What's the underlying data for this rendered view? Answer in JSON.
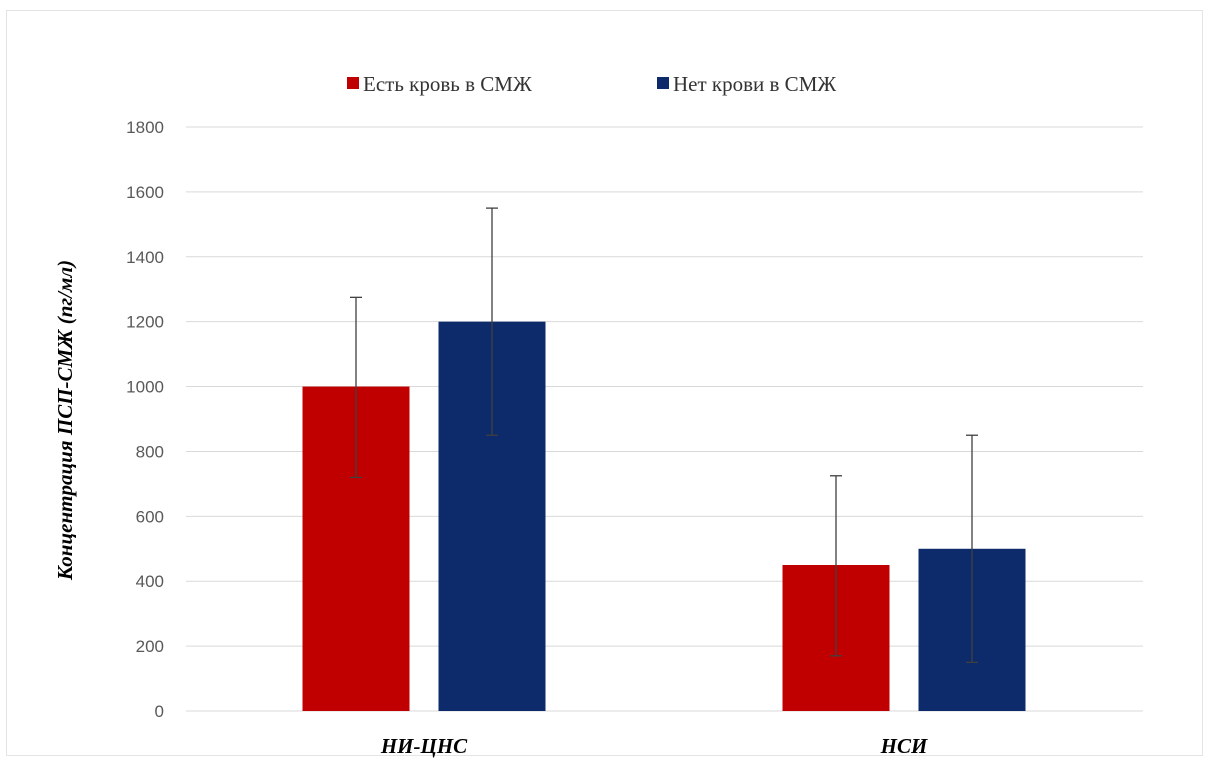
{
  "chart_data": {
    "type": "bar",
    "title": "",
    "xlabel": "",
    "ylabel": "Концентрация ПСП-СМЖ (пг/мл)",
    "categories": [
      "НИ-ЦНС",
      "НСИ"
    ],
    "series": [
      {
        "name": "Есть кровь в СМЖ",
        "color": "#c00000",
        "values": [
          1000,
          450
        ],
        "error_low": [
          720,
          170
        ],
        "error_high": [
          1275,
          725
        ]
      },
      {
        "name": "Нет крови в СМЖ",
        "color": "#0d2a6b",
        "values": [
          1200,
          500
        ],
        "error_low": [
          850,
          150
        ],
        "error_high": [
          1550,
          850
        ]
      }
    ],
    "ylim": [
      0,
      1800
    ],
    "yticks": [
      0,
      200,
      400,
      600,
      800,
      1000,
      1200,
      1400,
      1600,
      1800
    ],
    "ytick_labels": [
      "0",
      "200",
      "400",
      "600",
      "800",
      "1000",
      "1200",
      "1400",
      "1600",
      "1800"
    ],
    "grid": true,
    "legend_position": "top-center"
  }
}
